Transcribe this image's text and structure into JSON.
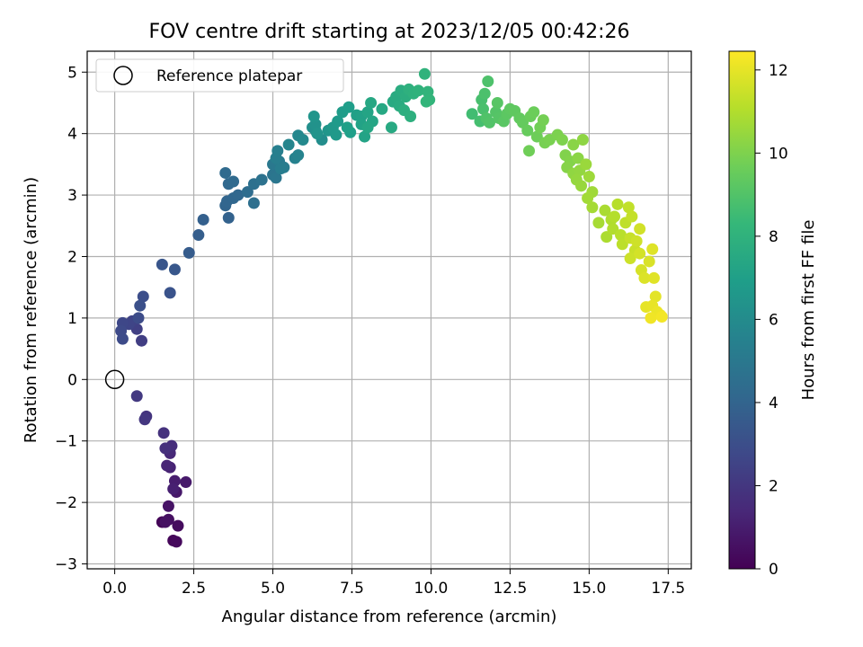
{
  "chart_data": {
    "type": "scatter",
    "title": "FOV centre drift starting at 2023/12/05 00:42:26",
    "xlabel": "Angular distance from reference (arcmin)",
    "ylabel": "Rotation from reference (arcmin)",
    "xlim": [
      -0.87,
      18.23
    ],
    "ylim": [
      -3.08,
      5.34
    ],
    "xticks": [
      0.0,
      2.5,
      5.0,
      7.5,
      10.0,
      12.5,
      15.0,
      17.5
    ],
    "xtick_labels": [
      "0.0",
      "2.5",
      "5.0",
      "7.5",
      "10.0",
      "12.5",
      "15.0",
      "17.5"
    ],
    "yticks": [
      -3,
      -2,
      -1,
      0,
      1,
      2,
      3,
      4,
      5
    ],
    "ytick_labels": [
      "−3",
      "−2",
      "−1",
      "0",
      "1",
      "2",
      "3",
      "4",
      "5"
    ],
    "grid": true,
    "legend": {
      "position": "top-left",
      "entries": [
        {
          "marker": "open-circle",
          "label": "Reference platepar"
        }
      ]
    },
    "reference_point": {
      "x": 0,
      "y": 0
    },
    "colormap": "viridis",
    "colorbar": {
      "label": "Hours from first FF file",
      "range": [
        0,
        12.45
      ],
      "ticks": [
        0,
        2,
        4,
        6,
        8,
        10,
        12
      ],
      "tick_labels": [
        "0",
        "2",
        "4",
        "6",
        "8",
        "10",
        "12"
      ],
      "colors": [
        "#440154",
        "#482878",
        "#3e4989",
        "#31688e",
        "#26828e",
        "#1f9e89",
        "#35b779",
        "#6ece58",
        "#b5de2b",
        "#fde725"
      ]
    },
    "series": [
      {
        "points": [
          [
            1.5,
            -2.32,
            0.1
          ],
          [
            1.85,
            -2.62,
            0.2
          ],
          [
            1.95,
            -2.64,
            0.3
          ],
          [
            2.0,
            -2.38,
            0.4
          ],
          [
            1.7,
            -2.28,
            0.5
          ],
          [
            1.6,
            -2.32,
            0.55
          ],
          [
            1.7,
            -2.06,
            0.65
          ],
          [
            1.95,
            -1.83,
            0.8
          ],
          [
            2.25,
            -1.67,
            0.9
          ],
          [
            1.9,
            -1.65,
            1.0
          ],
          [
            1.85,
            -1.78,
            1.1
          ],
          [
            1.75,
            -1.43,
            1.2
          ],
          [
            1.65,
            -1.4,
            1.3
          ],
          [
            1.75,
            -1.2,
            1.4
          ],
          [
            1.7,
            -1.15,
            1.5
          ],
          [
            1.8,
            -1.08,
            1.6
          ],
          [
            1.6,
            -1.12,
            1.7
          ],
          [
            1.55,
            -0.87,
            1.8
          ],
          [
            1.0,
            -0.6,
            1.9
          ],
          [
            0.95,
            -0.65,
            2.0
          ],
          [
            0.7,
            -0.27,
            2.1
          ],
          [
            0.85,
            0.63,
            2.3
          ],
          [
            0.7,
            0.82,
            2.4
          ],
          [
            0.55,
            0.95,
            2.5
          ],
          [
            0.45,
            0.9,
            2.6
          ],
          [
            0.25,
            0.92,
            2.7
          ],
          [
            0.2,
            0.79,
            2.8
          ],
          [
            0.25,
            0.66,
            2.85
          ],
          [
            0.75,
            1.0,
            2.9
          ],
          [
            0.9,
            1.35,
            3.0
          ],
          [
            0.8,
            1.2,
            3.1
          ],
          [
            1.75,
            1.41,
            3.2
          ],
          [
            1.5,
            1.87,
            3.3
          ],
          [
            1.9,
            1.79,
            3.4
          ],
          [
            2.35,
            2.06,
            3.6
          ],
          [
            2.65,
            2.35,
            3.7
          ],
          [
            2.8,
            2.6,
            3.8
          ],
          [
            3.6,
            2.63,
            3.9
          ],
          [
            3.5,
            2.83,
            4.0
          ],
          [
            3.55,
            2.9,
            4.05
          ],
          [
            3.75,
            2.95,
            4.1
          ],
          [
            3.9,
            3.0,
            4.15
          ],
          [
            3.6,
            3.18,
            4.2
          ],
          [
            3.75,
            3.22,
            4.25
          ],
          [
            3.5,
            3.36,
            4.3
          ],
          [
            4.2,
            3.05,
            4.4
          ],
          [
            4.4,
            2.87,
            4.5
          ],
          [
            4.4,
            3.18,
            4.6
          ],
          [
            4.65,
            3.25,
            4.7
          ],
          [
            5.0,
            3.33,
            4.8
          ],
          [
            5.1,
            3.28,
            4.9
          ],
          [
            5.0,
            3.5,
            5.0
          ],
          [
            5.2,
            3.55,
            5.1
          ],
          [
            5.35,
            3.45,
            5.2
          ],
          [
            5.25,
            3.43,
            5.25
          ],
          [
            5.1,
            3.6,
            5.3
          ],
          [
            5.15,
            3.72,
            5.4
          ],
          [
            5.7,
            3.6,
            5.5
          ],
          [
            5.8,
            3.65,
            5.6
          ],
          [
            5.5,
            3.82,
            5.7
          ],
          [
            5.8,
            3.97,
            5.8
          ],
          [
            5.95,
            3.9,
            5.9
          ],
          [
            6.35,
            4.05,
            6.0
          ],
          [
            6.55,
            3.9,
            6.1
          ],
          [
            6.25,
            4.1,
            6.2
          ],
          [
            6.35,
            4.15,
            6.3
          ],
          [
            6.4,
            4.0,
            6.4
          ],
          [
            6.3,
            4.28,
            6.45
          ],
          [
            6.75,
            4.05,
            6.5
          ],
          [
            6.9,
            4.1,
            6.6
          ],
          [
            7.0,
            3.98,
            6.65
          ],
          [
            7.05,
            4.2,
            6.7
          ],
          [
            7.2,
            4.35,
            6.8
          ],
          [
            7.4,
            4.43,
            6.9
          ],
          [
            7.45,
            4.02,
            6.95
          ],
          [
            7.35,
            4.1,
            7.0
          ],
          [
            7.65,
            4.3,
            7.05
          ],
          [
            7.8,
            4.28,
            7.1
          ],
          [
            7.8,
            4.15,
            7.15
          ],
          [
            7.9,
            3.95,
            7.2
          ],
          [
            8.0,
            4.35,
            7.25
          ],
          [
            8.15,
            4.2,
            7.3
          ],
          [
            8.0,
            4.1,
            7.35
          ],
          [
            8.1,
            4.5,
            7.4
          ],
          [
            8.45,
            4.4,
            7.45
          ],
          [
            8.75,
            4.1,
            7.5
          ],
          [
            8.8,
            4.52,
            7.55
          ],
          [
            8.9,
            4.6,
            7.6
          ],
          [
            9.0,
            4.45,
            7.65
          ],
          [
            9.05,
            4.7,
            7.7
          ],
          [
            9.2,
            4.6,
            7.75
          ],
          [
            9.15,
            4.38,
            7.8
          ],
          [
            9.35,
            4.28,
            7.85
          ],
          [
            9.3,
            4.72,
            7.9
          ],
          [
            9.45,
            4.65,
            7.95
          ],
          [
            9.6,
            4.7,
            8.0
          ],
          [
            9.8,
            4.97,
            8.05
          ],
          [
            9.9,
            4.68,
            8.1
          ],
          [
            9.95,
            4.55,
            8.15
          ],
          [
            9.85,
            4.52,
            8.2
          ],
          [
            11.3,
            4.32,
            8.6
          ],
          [
            11.55,
            4.2,
            8.7
          ],
          [
            11.6,
            4.55,
            8.75
          ],
          [
            11.65,
            4.4,
            8.8
          ],
          [
            11.7,
            4.65,
            8.85
          ],
          [
            11.8,
            4.85,
            8.9
          ],
          [
            11.75,
            4.25,
            8.95
          ],
          [
            11.85,
            4.18,
            9.0
          ],
          [
            12.05,
            4.35,
            9.05
          ],
          [
            12.15,
            4.25,
            9.1
          ],
          [
            12.1,
            4.5,
            9.15
          ],
          [
            12.3,
            4.2,
            9.2
          ],
          [
            12.4,
            4.32,
            9.25
          ],
          [
            12.5,
            4.4,
            9.3
          ],
          [
            12.65,
            4.37,
            9.35
          ],
          [
            12.8,
            4.25,
            9.4
          ],
          [
            12.9,
            4.18,
            9.45
          ],
          [
            13.05,
            4.05,
            9.5
          ],
          [
            13.15,
            4.28,
            9.55
          ],
          [
            13.25,
            4.35,
            9.6
          ],
          [
            13.35,
            3.95,
            9.65
          ],
          [
            13.1,
            3.72,
            9.7
          ],
          [
            13.45,
            4.1,
            9.75
          ],
          [
            13.55,
            4.22,
            9.8
          ],
          [
            13.6,
            3.85,
            9.85
          ],
          [
            13.75,
            3.9,
            9.9
          ],
          [
            14.0,
            3.98,
            9.95
          ],
          [
            14.15,
            3.9,
            10.0
          ],
          [
            14.25,
            3.65,
            10.05
          ],
          [
            14.4,
            3.55,
            10.1
          ],
          [
            14.3,
            3.45,
            10.15
          ],
          [
            14.5,
            3.82,
            10.2
          ],
          [
            14.65,
            3.6,
            10.25
          ],
          [
            14.8,
            3.9,
            10.3
          ],
          [
            14.5,
            3.35,
            10.35
          ],
          [
            14.7,
            3.4,
            10.4
          ],
          [
            14.6,
            3.25,
            10.45
          ],
          [
            14.75,
            3.15,
            10.5
          ],
          [
            14.9,
            3.5,
            10.55
          ],
          [
            15.0,
            3.3,
            10.6
          ],
          [
            15.1,
            3.05,
            10.65
          ],
          [
            14.95,
            2.95,
            10.7
          ],
          [
            15.1,
            2.8,
            10.75
          ],
          [
            15.3,
            2.55,
            10.8
          ],
          [
            15.5,
            2.75,
            10.85
          ],
          [
            15.55,
            2.32,
            10.9
          ],
          [
            15.7,
            2.6,
            10.95
          ],
          [
            15.75,
            2.45,
            11.0
          ],
          [
            15.8,
            2.65,
            11.05
          ],
          [
            15.9,
            2.85,
            11.1
          ],
          [
            16.0,
            2.35,
            11.15
          ],
          [
            16.05,
            2.2,
            11.2
          ],
          [
            16.15,
            2.55,
            11.25
          ],
          [
            16.25,
            2.8,
            11.3
          ],
          [
            16.35,
            2.65,
            11.35
          ],
          [
            16.3,
            2.3,
            11.4
          ],
          [
            16.45,
            2.1,
            11.45
          ],
          [
            16.3,
            1.97,
            11.5
          ],
          [
            16.5,
            2.25,
            11.55
          ],
          [
            16.6,
            2.45,
            11.6
          ],
          [
            16.6,
            2.05,
            11.65
          ],
          [
            16.65,
            1.78,
            11.7
          ],
          [
            16.9,
            1.92,
            11.75
          ],
          [
            16.75,
            1.65,
            11.8
          ],
          [
            17.0,
            2.12,
            11.85
          ],
          [
            17.05,
            1.65,
            11.9
          ],
          [
            17.1,
            1.35,
            11.95
          ],
          [
            16.8,
            1.18,
            12.0
          ],
          [
            17.0,
            1.2,
            12.05
          ],
          [
            17.15,
            1.1,
            12.1
          ],
          [
            17.25,
            1.05,
            12.15
          ],
          [
            16.95,
            1.0,
            12.2
          ],
          [
            17.3,
            1.02,
            12.25
          ]
        ]
      }
    ]
  }
}
